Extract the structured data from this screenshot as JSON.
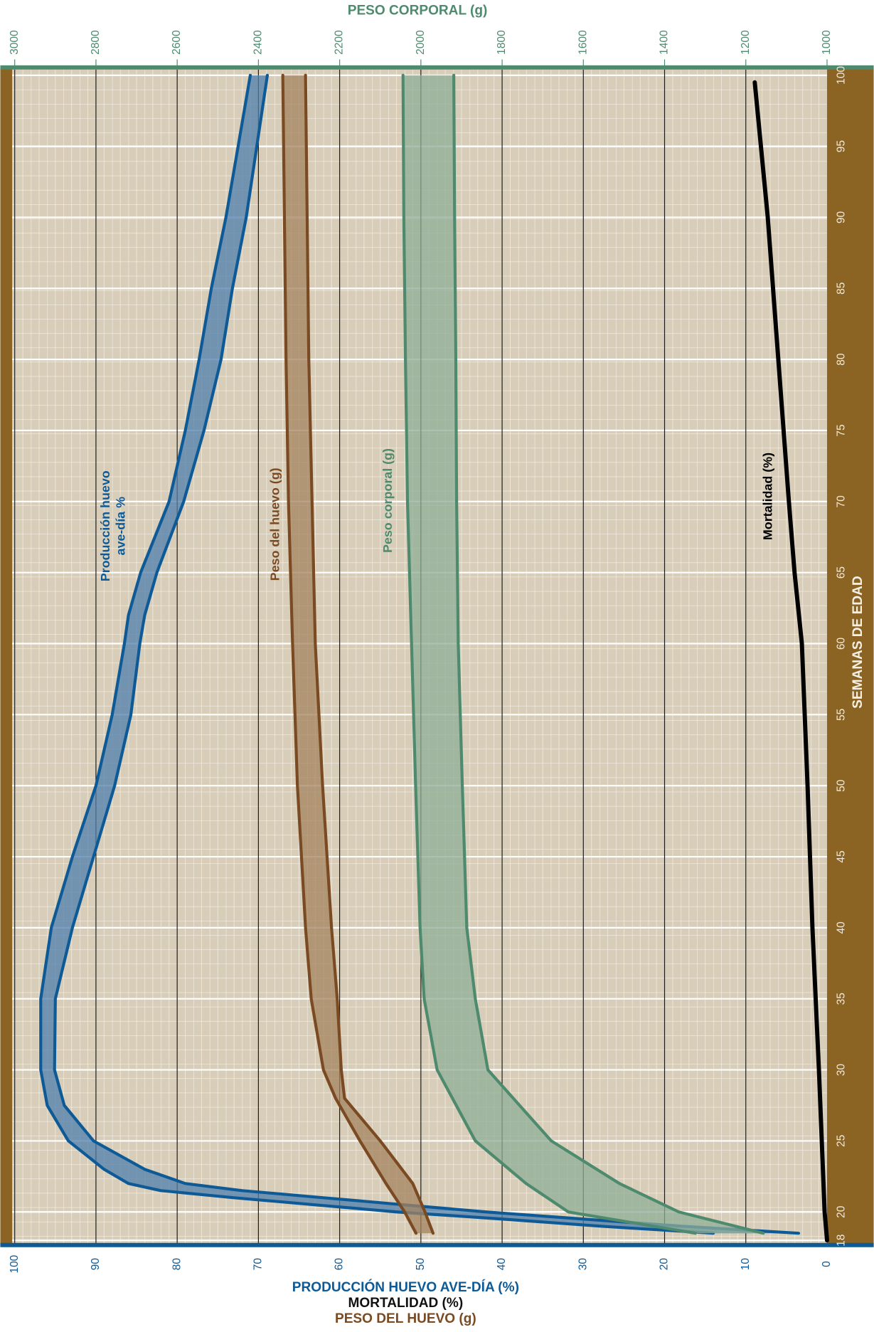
{
  "chart_data": {
    "type": "line",
    "x_label": "SEMANAS DE EDAD",
    "y_labels": [
      {
        "text": "PRODUCCIÓN HUEVO AVE-DÍA (%)",
        "color": "#0e5a96"
      },
      {
        "text": "MORTALIDAD (%)",
        "color": "#111111"
      },
      {
        "text": "PESO DEL HUEVO (g)",
        "color": "#7a4a22"
      }
    ],
    "y2_label": "PESO CORPORAL (g)",
    "y2_color": "#4e8a6e",
    "xlim": [
      17.7,
      100.4
    ],
    "xticks": [
      18,
      20,
      25,
      30,
      35,
      40,
      45,
      50,
      55,
      60,
      65,
      70,
      75,
      80,
      85,
      90,
      95,
      100
    ],
    "ylim": [
      0,
      100
    ],
    "yticks": [
      0,
      10,
      20,
      30,
      40,
      50,
      60,
      70,
      80,
      90,
      100
    ],
    "y2lim": [
      1000,
      3000
    ],
    "y2ticks": [
      1000,
      1200,
      1400,
      1600,
      1800,
      2000,
      2200,
      2400,
      2600,
      2800,
      3000
    ],
    "grid": true,
    "series": [
      {
        "type": "band",
        "name": [
          "Producción huevo",
          "ave-día %"
        ],
        "color": "#0e5a96",
        "fill": "#4f7fae",
        "x": [
          100,
          95,
          90,
          85,
          80,
          75,
          70,
          65,
          62,
          60,
          55,
          50,
          45,
          40,
          35,
          30,
          27.5,
          25,
          23,
          22,
          21.5,
          21,
          20.5,
          20,
          19.5,
          19,
          18.5
        ],
        "high": [
          71,
          72.5,
          74,
          75.8,
          77.3,
          79,
          81,
          84.5,
          86,
          86.5,
          88,
          90,
          92.9,
          95.5,
          96.8,
          96.8,
          96,
          93.4,
          89,
          86,
          82,
          73,
          63,
          53,
          40,
          28,
          14
        ],
        "low": [
          68.9,
          70.2,
          71.5,
          73.2,
          74.6,
          76.7,
          79.2,
          82.5,
          84,
          84.6,
          85.7,
          87.7,
          90.3,
          92.9,
          95,
          95.1,
          93.9,
          90.3,
          84,
          79,
          72,
          62,
          52,
          42,
          30,
          18,
          3.5
        ]
      },
      {
        "type": "band",
        "name": [
          "Peso del huevo (g)"
        ],
        "color": "#7a4a22",
        "fill": "#a4835f",
        "x": [
          100,
          90,
          80,
          70,
          60,
          50,
          40,
          35,
          30,
          28,
          25,
          22,
          20,
          18.5
        ],
        "high": [
          67,
          66.8,
          66.6,
          66.3,
          65.8,
          65.2,
          64.2,
          63.5,
          62,
          60.5,
          57.5,
          54.3,
          52,
          50.6
        ],
        "low": [
          64.2,
          64,
          63.8,
          63.4,
          63,
          62.1,
          61,
          60.3,
          59.8,
          59.4,
          55,
          51,
          49.5,
          48.5
        ]
      },
      {
        "type": "band",
        "axis": "y2",
        "name": [
          "Peso corporal (g)"
        ],
        "color": "#4e8a6e",
        "fill": "#8fae97",
        "x": [
          100,
          90,
          80,
          70,
          60,
          50,
          40,
          35,
          30,
          25,
          22,
          20,
          18.5
        ],
        "high": [
          2044,
          2042,
          2038,
          2033,
          2023,
          2013,
          2002,
          1992,
          1960,
          1866,
          1741,
          1637,
          1324
        ],
        "low": [
          1919,
          1917,
          1914,
          1912,
          1908,
          1898,
          1887,
          1866,
          1835,
          1679,
          1511,
          1365,
          1157
        ]
      },
      {
        "type": "line",
        "name": [
          "Mortalidad (%)"
        ],
        "color": "#000000",
        "x": [
          99.5,
          90,
          80,
          70,
          65,
          60,
          50,
          40,
          30,
          20,
          18
        ],
        "values": [
          8.9,
          7.3,
          6,
          4.7,
          4,
          3.1,
          2.4,
          1.8,
          1,
          0.3,
          0
        ]
      }
    ]
  }
}
